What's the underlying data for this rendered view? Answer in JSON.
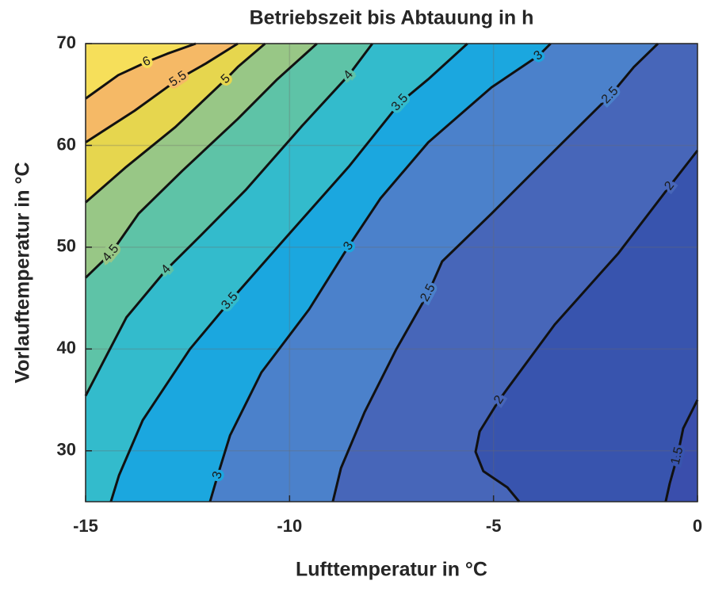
{
  "chart_data": {
    "type": "contour",
    "title": "Betriebszeit bis Abtauung in h",
    "xlabel": "Lufttemperatur in °C",
    "ylabel": "Vorlauftemperatur in °C",
    "xlim": [
      -15,
      0
    ],
    "ylim": [
      25,
      70
    ],
    "xticks": [
      -15,
      -10,
      -5,
      0
    ],
    "yticks": [
      30,
      40,
      50,
      60,
      70
    ],
    "grid": true,
    "base_color": "#3a4eac",
    "contours": [
      {
        "level": 1.5,
        "color": "#3854ae",
        "x": [
          0,
          -0.35,
          -0.49,
          -0.68,
          -0.78
        ],
        "y": [
          35.0,
          32.2,
          29.5,
          26.8,
          25
        ]
      },
      {
        "level": 2,
        "color": "#4766b9",
        "x": [
          0,
          -0.68,
          -1.94,
          -3.5,
          -4.66,
          -4.86,
          -5.34,
          -5.44,
          -5.25,
          -4.66,
          -4.37
        ],
        "y": [
          59.5,
          56.0,
          49.4,
          42.4,
          36.1,
          35.0,
          31.9,
          29.9,
          28.0,
          26.4,
          25
        ]
      },
      {
        "level": 2.5,
        "color": "#4b81cb",
        "x": [
          -0.97,
          -1.56,
          -2.14,
          -3.5,
          -5.05,
          -6.26,
          -6.6,
          -7.38,
          -8.16,
          -8.74,
          -8.94
        ],
        "y": [
          70,
          67.7,
          64.9,
          59.5,
          53.3,
          48.6,
          45.5,
          40.0,
          33.8,
          28.3,
          25
        ]
      },
      {
        "level": 3,
        "color": "#1ba7df",
        "x": [
          -3.6,
          -3.9,
          -5.05,
          -6.6,
          -7.77,
          -8.55,
          -9.52,
          -10.69,
          -11.46,
          -11.76,
          -11.95
        ],
        "y": [
          70,
          68.8,
          65.7,
          60.3,
          54.8,
          50.1,
          43.9,
          37.7,
          31.5,
          27.6,
          25
        ]
      },
      {
        "level": 3.5,
        "color": "#33bbcc",
        "x": [
          -5.64,
          -6.6,
          -7.29,
          -8.55,
          -10.1,
          -11.46,
          -12.44,
          -13.6,
          -14.18,
          -14.38
        ],
        "y": [
          70,
          66.5,
          64.2,
          57.9,
          50.9,
          44.7,
          40.0,
          33.0,
          27.6,
          25
        ]
      },
      {
        "level": 4,
        "color": "#5ec3a7",
        "x": [
          -7.97,
          -8.55,
          -9.72,
          -11.08,
          -12.24,
          -13.02,
          -14.0,
          -15
        ],
        "y": [
          70,
          66.9,
          61.8,
          55.6,
          50.9,
          47.8,
          43.1,
          35.4
        ]
      },
      {
        "level": 4.5,
        "color": "#98c786",
        "x": [
          -9.33,
          -10.3,
          -11.27,
          -12.63,
          -13.7,
          -14.38,
          -15
        ],
        "y": [
          70,
          66.5,
          62.6,
          57.5,
          53.3,
          49.4,
          47.0
        ]
      },
      {
        "level": 5,
        "color": "#e6d64e",
        "x": [
          -10.6,
          -11.27,
          -11.56,
          -12.8,
          -14.0,
          -15
        ],
        "y": [
          70,
          67.7,
          66.5,
          61.8,
          57.9,
          54.4
        ]
      },
      {
        "level": 5.5,
        "color": "#f5b966",
        "x": [
          -11.27,
          -12.05,
          -12.73,
          -13.8,
          -15
        ],
        "y": [
          70,
          68.05,
          66.5,
          63.4,
          60.3
        ]
      },
      {
        "level": 6,
        "color": "#f6df5a",
        "x": [
          -12.3,
          -13.0,
          -13.5,
          -14.2,
          -15
        ],
        "y": [
          70,
          69,
          68.2,
          66.9,
          64.6
        ]
      }
    ]
  }
}
